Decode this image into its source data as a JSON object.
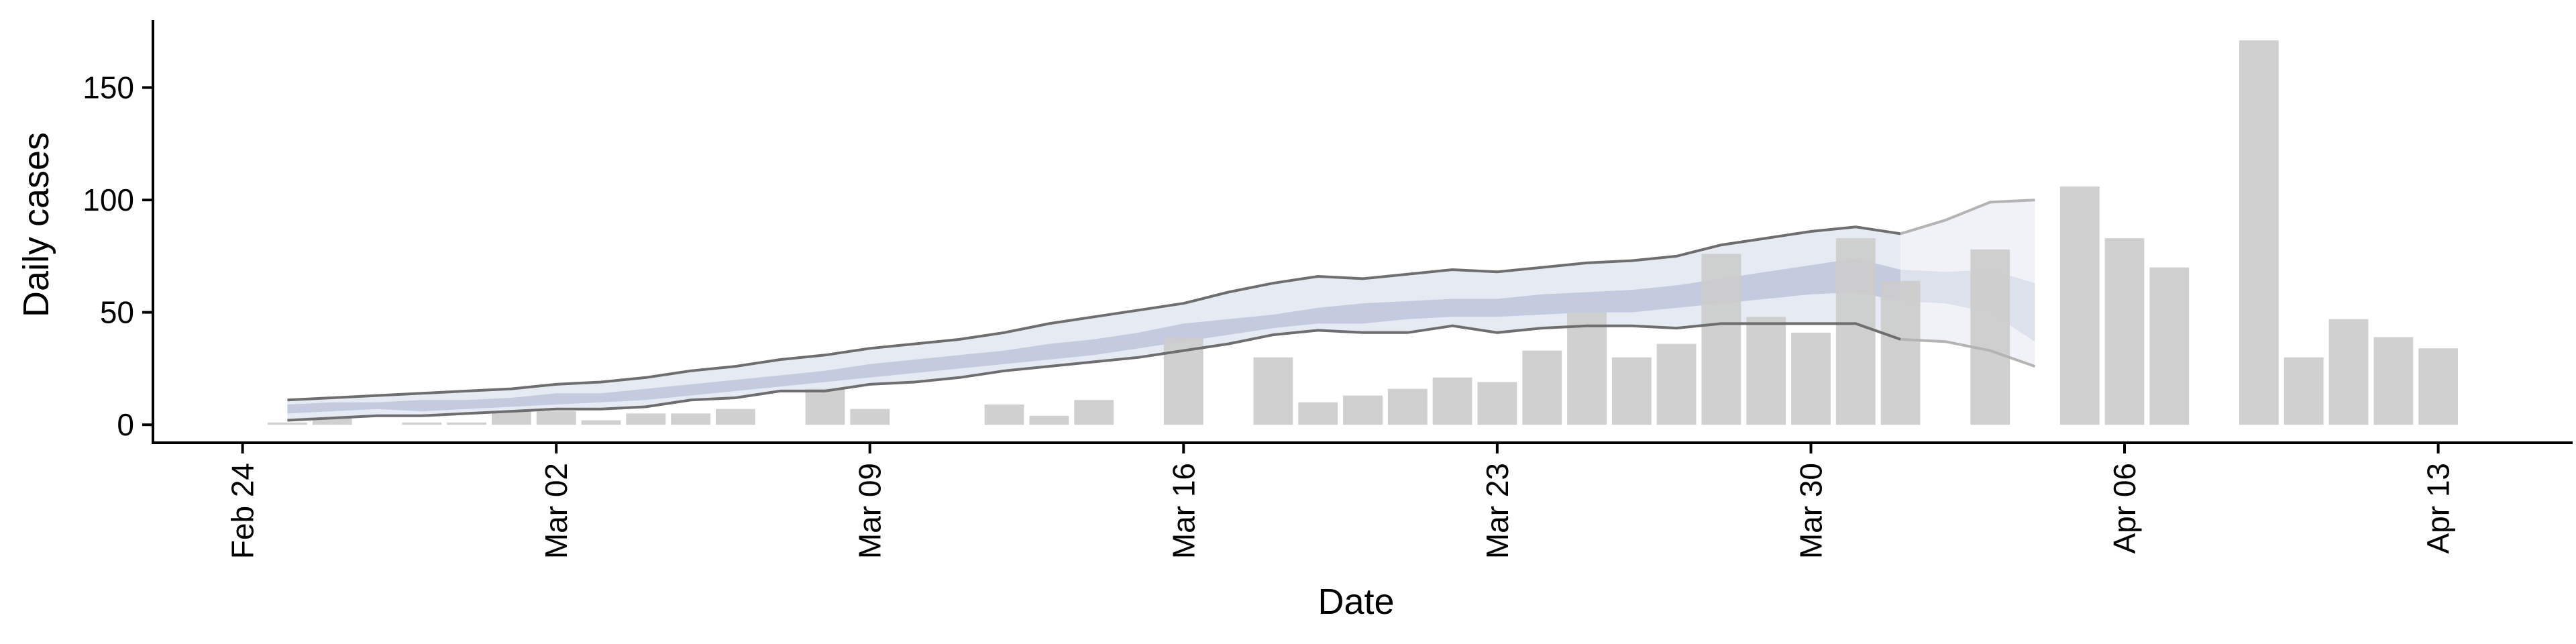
{
  "chart_data": {
    "type": "bar",
    "title": "",
    "xlabel": "Date",
    "ylabel": "Daily cases",
    "ylim": [
      -8,
      180
    ],
    "yticks": [
      0,
      50,
      100,
      150
    ],
    "xlim": [
      "2020-02-22",
      "2020-04-16"
    ],
    "xticks": [
      {
        "date": "2020-02-24",
        "label": "Feb 24"
      },
      {
        "date": "2020-03-02",
        "label": "Mar 02"
      },
      {
        "date": "2020-03-09",
        "label": "Mar 09"
      },
      {
        "date": "2020-03-16",
        "label": "Mar 16"
      },
      {
        "date": "2020-03-23",
        "label": "Mar 23"
      },
      {
        "date": "2020-03-30",
        "label": "Mar 30"
      },
      {
        "date": "2020-04-06",
        "label": "Apr 06"
      },
      {
        "date": "2020-04-13",
        "label": "Apr 13"
      }
    ],
    "grid": false,
    "legend": "none",
    "colors": {
      "bars": "#cccccc",
      "band_outer": "#e6eaf2",
      "band_inner": "#c4cbde",
      "band_forecast_outer": "#f0f2f7",
      "band_forecast_inner": "#dde1ec",
      "bound_lines": "#6e6e6e",
      "bound_lines_forecast": "#b4b4b4",
      "axis": "#000000"
    },
    "bars": [
      {
        "date": "2020-02-25",
        "value": 1
      },
      {
        "date": "2020-02-26",
        "value": 3
      },
      {
        "date": "2020-02-28",
        "value": 1
      },
      {
        "date": "2020-02-29",
        "value": 1
      },
      {
        "date": "2020-03-01",
        "value": 6
      },
      {
        "date": "2020-03-02",
        "value": 6
      },
      {
        "date": "2020-03-03",
        "value": 2
      },
      {
        "date": "2020-03-04",
        "value": 5
      },
      {
        "date": "2020-03-05",
        "value": 5
      },
      {
        "date": "2020-03-06",
        "value": 7
      },
      {
        "date": "2020-03-08",
        "value": 16
      },
      {
        "date": "2020-03-09",
        "value": 7
      },
      {
        "date": "2020-03-12",
        "value": 9
      },
      {
        "date": "2020-03-13",
        "value": 4
      },
      {
        "date": "2020-03-14",
        "value": 11
      },
      {
        "date": "2020-03-16",
        "value": 39
      },
      {
        "date": "2020-03-18",
        "value": 30
      },
      {
        "date": "2020-03-19",
        "value": 10
      },
      {
        "date": "2020-03-20",
        "value": 13
      },
      {
        "date": "2020-03-21",
        "value": 16
      },
      {
        "date": "2020-03-22",
        "value": 21
      },
      {
        "date": "2020-03-23",
        "value": 19
      },
      {
        "date": "2020-03-24",
        "value": 33
      },
      {
        "date": "2020-03-25",
        "value": 50
      },
      {
        "date": "2020-03-26",
        "value": 30
      },
      {
        "date": "2020-03-27",
        "value": 36
      },
      {
        "date": "2020-03-28",
        "value": 76
      },
      {
        "date": "2020-03-29",
        "value": 48
      },
      {
        "date": "2020-03-30",
        "value": 41
      },
      {
        "date": "2020-03-31",
        "value": 83
      },
      {
        "date": "2020-04-01",
        "value": 64
      },
      {
        "date": "2020-04-03",
        "value": 78
      },
      {
        "date": "2020-04-05",
        "value": 106
      },
      {
        "date": "2020-04-06",
        "value": 83
      },
      {
        "date": "2020-04-07",
        "value": 70
      },
      {
        "date": "2020-04-09",
        "value": 171
      },
      {
        "date": "2020-04-10",
        "value": 30
      },
      {
        "date": "2020-04-11",
        "value": 47
      },
      {
        "date": "2020-04-12",
        "value": 39
      },
      {
        "date": "2020-04-13",
        "value": 34
      }
    ],
    "forecast_from": "2020-04-01",
    "band": [
      {
        "date": "2020-02-25",
        "lower": 2,
        "inner_lower": 5,
        "inner_upper": 9,
        "upper": 11
      },
      {
        "date": "2020-02-26",
        "lower": 3,
        "inner_lower": 6,
        "inner_upper": 10,
        "upper": 12
      },
      {
        "date": "2020-02-27",
        "lower": 4,
        "inner_lower": 7,
        "inner_upper": 10,
        "upper": 13
      },
      {
        "date": "2020-02-28",
        "lower": 4,
        "inner_lower": 6,
        "inner_upper": 11,
        "upper": 14
      },
      {
        "date": "2020-02-29",
        "lower": 5,
        "inner_lower": 7,
        "inner_upper": 11,
        "upper": 15
      },
      {
        "date": "2020-03-01",
        "lower": 6,
        "inner_lower": 8,
        "inner_upper": 12,
        "upper": 16
      },
      {
        "date": "2020-03-02",
        "lower": 7,
        "inner_lower": 9,
        "inner_upper": 14,
        "upper": 18
      },
      {
        "date": "2020-03-03",
        "lower": 7,
        "inner_lower": 10,
        "inner_upper": 14,
        "upper": 19
      },
      {
        "date": "2020-03-04",
        "lower": 8,
        "inner_lower": 11,
        "inner_upper": 16,
        "upper": 21
      },
      {
        "date": "2020-03-05",
        "lower": 11,
        "inner_lower": 13,
        "inner_upper": 18,
        "upper": 24
      },
      {
        "date": "2020-03-06",
        "lower": 12,
        "inner_lower": 15,
        "inner_upper": 20,
        "upper": 26
      },
      {
        "date": "2020-03-07",
        "lower": 15,
        "inner_lower": 17,
        "inner_upper": 22,
        "upper": 29
      },
      {
        "date": "2020-03-08",
        "lower": 15,
        "inner_lower": 19,
        "inner_upper": 24,
        "upper": 31
      },
      {
        "date": "2020-03-09",
        "lower": 18,
        "inner_lower": 21,
        "inner_upper": 27,
        "upper": 34
      },
      {
        "date": "2020-03-10",
        "lower": 19,
        "inner_lower": 23,
        "inner_upper": 29,
        "upper": 36
      },
      {
        "date": "2020-03-11",
        "lower": 21,
        "inner_lower": 25,
        "inner_upper": 31,
        "upper": 38
      },
      {
        "date": "2020-03-12",
        "lower": 24,
        "inner_lower": 27,
        "inner_upper": 33,
        "upper": 41
      },
      {
        "date": "2020-03-13",
        "lower": 26,
        "inner_lower": 29,
        "inner_upper": 36,
        "upper": 45
      },
      {
        "date": "2020-03-14",
        "lower": 28,
        "inner_lower": 31,
        "inner_upper": 38,
        "upper": 48
      },
      {
        "date": "2020-03-15",
        "lower": 30,
        "inner_lower": 34,
        "inner_upper": 41,
        "upper": 51
      },
      {
        "date": "2020-03-16",
        "lower": 33,
        "inner_lower": 37,
        "inner_upper": 45,
        "upper": 54
      },
      {
        "date": "2020-03-17",
        "lower": 36,
        "inner_lower": 40,
        "inner_upper": 47,
        "upper": 59
      },
      {
        "date": "2020-03-18",
        "lower": 40,
        "inner_lower": 43,
        "inner_upper": 49,
        "upper": 63
      },
      {
        "date": "2020-03-19",
        "lower": 42,
        "inner_lower": 45,
        "inner_upper": 52,
        "upper": 66
      },
      {
        "date": "2020-03-20",
        "lower": 41,
        "inner_lower": 45,
        "inner_upper": 54,
        "upper": 65
      },
      {
        "date": "2020-03-21",
        "lower": 41,
        "inner_lower": 47,
        "inner_upper": 55,
        "upper": 67
      },
      {
        "date": "2020-03-22",
        "lower": 44,
        "inner_lower": 48,
        "inner_upper": 56,
        "upper": 69
      },
      {
        "date": "2020-03-23",
        "lower": 41,
        "inner_lower": 48,
        "inner_upper": 56,
        "upper": 68
      },
      {
        "date": "2020-03-24",
        "lower": 43,
        "inner_lower": 49,
        "inner_upper": 58,
        "upper": 70
      },
      {
        "date": "2020-03-25",
        "lower": 44,
        "inner_lower": 50,
        "inner_upper": 59,
        "upper": 72
      },
      {
        "date": "2020-03-26",
        "lower": 44,
        "inner_lower": 50,
        "inner_upper": 60,
        "upper": 73
      },
      {
        "date": "2020-03-27",
        "lower": 43,
        "inner_lower": 52,
        "inner_upper": 62,
        "upper": 75
      },
      {
        "date": "2020-03-28",
        "lower": 45,
        "inner_lower": 54,
        "inner_upper": 65,
        "upper": 80
      },
      {
        "date": "2020-03-29",
        "lower": 45,
        "inner_lower": 56,
        "inner_upper": 68,
        "upper": 83
      },
      {
        "date": "2020-03-30",
        "lower": 45,
        "inner_lower": 58,
        "inner_upper": 71,
        "upper": 86
      },
      {
        "date": "2020-03-31",
        "lower": 45,
        "inner_lower": 59,
        "inner_upper": 74,
        "upper": 88
      },
      {
        "date": "2020-04-01",
        "lower": 38,
        "inner_lower": 55,
        "inner_upper": 69,
        "upper": 85
      },
      {
        "date": "2020-04-02",
        "lower": 37,
        "inner_lower": 54,
        "inner_upper": 68,
        "upper": 91
      },
      {
        "date": "2020-04-03",
        "lower": 33,
        "inner_lower": 50,
        "inner_upper": 69,
        "upper": 99
      },
      {
        "date": "2020-04-04",
        "lower": 26,
        "inner_lower": 37,
        "inner_upper": 63,
        "upper": 100
      }
    ]
  }
}
